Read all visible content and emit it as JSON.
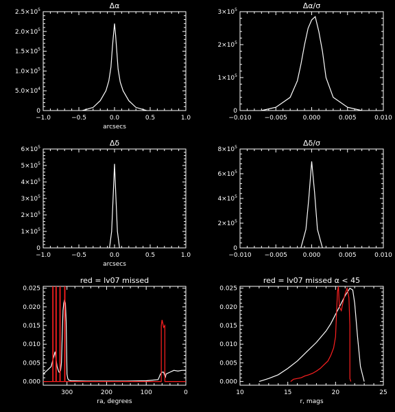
{
  "chart_data": [
    {
      "type": "line",
      "title": "Δα",
      "xlabel": "arcsecs",
      "ylabel": "",
      "xlim": [
        -1.0,
        1.0
      ],
      "ylim": [
        0,
        250000
      ],
      "xticks": [
        -1.0,
        -0.5,
        0.0,
        0.5,
        1.0
      ],
      "xtick_labels": [
        "−1.0",
        "−0.5",
        "0.0",
        "0.5",
        "1.0"
      ],
      "yticks": [
        0,
        50000,
        100000,
        150000,
        200000,
        250000
      ],
      "ytick_labels": [
        {
          "mant": "0",
          "exp": ""
        },
        {
          "mant": "5.0×10",
          "exp": "4"
        },
        {
          "mant": "1.0×10",
          "exp": "5"
        },
        {
          "mant": "1.5×10",
          "exp": "5"
        },
        {
          "mant": "2.0×10",
          "exp": "5"
        },
        {
          "mant": "2.5×10",
          "exp": "5"
        }
      ],
      "series": [
        {
          "color": "#ffffff",
          "x": [
            -0.45,
            -0.3,
            -0.2,
            -0.12,
            -0.08,
            -0.05,
            -0.03,
            -0.015,
            0.0,
            0.015,
            0.03,
            0.05,
            0.08,
            0.12,
            0.2,
            0.3,
            0.45
          ],
          "y": [
            0,
            8000,
            25000,
            50000,
            75000,
            110000,
            160000,
            190000,
            220000,
            190000,
            155000,
            105000,
            72000,
            50000,
            25000,
            8000,
            0
          ]
        }
      ]
    },
    {
      "type": "line",
      "title": "Δα/σ",
      "xlabel": "",
      "ylabel": "",
      "xlim": [
        -0.01,
        0.01
      ],
      "ylim": [
        0,
        300000
      ],
      "xticks": [
        -0.01,
        -0.005,
        0.0,
        0.005,
        0.01
      ],
      "xtick_labels": [
        "−0.010",
        "−0.005",
        "0.000",
        "0.005",
        "0.010"
      ],
      "yticks": [
        0,
        100000,
        200000,
        300000
      ],
      "ytick_labels": [
        {
          "mant": "0",
          "exp": ""
        },
        {
          "mant": "1×10",
          "exp": "5"
        },
        {
          "mant": "2×10",
          "exp": "5"
        },
        {
          "mant": "3×10",
          "exp": "5"
        }
      ],
      "series": [
        {
          "color": "#ffffff",
          "x": [
            -0.007,
            -0.005,
            -0.003,
            -0.002,
            -0.0015,
            -0.001,
            -0.0005,
            0.0,
            0.0005,
            0.001,
            0.0015,
            0.002,
            0.003,
            0.005,
            0.007
          ],
          "y": [
            0,
            10000,
            40000,
            90000,
            140000,
            200000,
            250000,
            275000,
            285000,
            240000,
            180000,
            100000,
            40000,
            10000,
            0
          ]
        }
      ]
    },
    {
      "type": "line",
      "title": "Δδ",
      "xlabel": "arcsecs",
      "ylabel": "",
      "xlim": [
        -1.0,
        1.0
      ],
      "ylim": [
        0,
        600000
      ],
      "xticks": [
        -1.0,
        -0.5,
        0.0,
        0.5,
        1.0
      ],
      "xtick_labels": [
        "−1.0",
        "−0.5",
        "0.0",
        "0.5",
        "1.0"
      ],
      "yticks": [
        0,
        100000,
        200000,
        300000,
        400000,
        500000,
        600000
      ],
      "ytick_labels": [
        {
          "mant": "0",
          "exp": ""
        },
        {
          "mant": "1×10",
          "exp": "5"
        },
        {
          "mant": "2×10",
          "exp": "5"
        },
        {
          "mant": "3×10",
          "exp": "5"
        },
        {
          "mant": "4×10",
          "exp": "5"
        },
        {
          "mant": "5×10",
          "exp": "5"
        },
        {
          "mant": "6×10",
          "exp": "5"
        }
      ],
      "series": [
        {
          "color": "#ffffff",
          "x": [
            -0.07,
            -0.04,
            -0.02,
            0.0,
            0.02,
            0.04,
            0.07
          ],
          "y": [
            0,
            100000,
            300000,
            510000,
            300000,
            100000,
            0
          ]
        }
      ]
    },
    {
      "type": "line",
      "title": "Δδ/σ",
      "xlabel": "",
      "ylabel": "",
      "xlim": [
        -0.01,
        0.01
      ],
      "ylim": [
        0,
        800000
      ],
      "xticks": [
        -0.01,
        -0.005,
        0.0,
        0.005,
        0.01
      ],
      "xtick_labels": [
        "−0.010",
        "−0.005",
        "0.000",
        "0.005",
        "0.010"
      ],
      "yticks": [
        0,
        200000,
        400000,
        600000,
        800000
      ],
      "ytick_labels": [
        {
          "mant": "0",
          "exp": ""
        },
        {
          "mant": "2×10",
          "exp": "5"
        },
        {
          "mant": "4×10",
          "exp": "5"
        },
        {
          "mant": "6×10",
          "exp": "5"
        },
        {
          "mant": "8×10",
          "exp": "5"
        }
      ],
      "series": [
        {
          "color": "#ffffff",
          "x": [
            -0.0015,
            -0.0008,
            -0.0004,
            0.0,
            0.0004,
            0.0008,
            0.0015
          ],
          "y": [
            0,
            150000,
            400000,
            700000,
            450000,
            150000,
            0
          ]
        }
      ]
    },
    {
      "type": "line",
      "title": "red = lv07 missed",
      "xlabel": "ra, degrees",
      "ylabel": "",
      "xlim": [
        360,
        0
      ],
      "ylim": [
        -0.001,
        0.0255
      ],
      "xticks": [
        300,
        200,
        100,
        0
      ],
      "xtick_labels": [
        "300",
        "200",
        "100",
        "0"
      ],
      "yticks": [
        0.0,
        0.005,
        0.01,
        0.015,
        0.02,
        0.025
      ],
      "ytick_labels": [
        {
          "mant": "0.000",
          "exp": ""
        },
        {
          "mant": "0.005",
          "exp": ""
        },
        {
          "mant": "0.010",
          "exp": ""
        },
        {
          "mant": "0.015",
          "exp": ""
        },
        {
          "mant": "0.020",
          "exp": ""
        },
        {
          "mant": "0.025",
          "exp": ""
        }
      ],
      "series": [
        {
          "color": "#ffffff",
          "x": [
            360,
            350,
            340,
            335,
            330,
            325,
            322,
            320,
            318,
            316,
            314,
            312,
            310,
            308,
            306,
            304,
            302,
            300,
            298,
            296,
            290,
            250,
            200,
            150,
            100,
            70,
            64,
            60,
            56,
            52,
            50,
            40,
            30,
            20,
            10,
            0
          ],
          "y": [
            0.002,
            0.003,
            0.004,
            0.006,
            0.008,
            0.004,
            0.003,
            0.0025,
            0.0025,
            0.003,
            0.005,
            0.012,
            0.019,
            0.021,
            0.022,
            0.021,
            0.016,
            0.002,
            0.0008,
            0.0004,
            0.0002,
            0.0001,
            0.0001,
            0.0001,
            0.0002,
            0.0005,
            0.002,
            0.0025,
            0.0025,
            0.001,
            0.002,
            0.0025,
            0.003,
            0.0028,
            0.003,
            0.003
          ]
        },
        {
          "color": "#ff2020",
          "x": [
            360,
            337,
            336,
            336,
            335,
            335,
            330,
            328,
            328,
            327,
            327,
            320,
            318,
            318,
            317,
            317,
            310,
            306,
            306,
            305,
            305,
            300,
            62,
            62,
            60,
            58,
            56,
            53,
            53,
            0
          ],
          "y": [
            0,
            0,
            0,
            0.026,
            0.026,
            0,
            0,
            0,
            0.026,
            0.026,
            0,
            0,
            0,
            0.026,
            0.026,
            0,
            0,
            0,
            0.026,
            0.026,
            0,
            0,
            0,
            0.015,
            0.0165,
            0.0155,
            0.0145,
            0.015,
            0,
            0
          ]
        }
      ]
    },
    {
      "type": "line",
      "title": "red = lv07 missed α < 45",
      "xlabel": "r, mags",
      "ylabel": "",
      "xlim": [
        10,
        25
      ],
      "ylim": [
        -0.001,
        0.0255
      ],
      "xticks": [
        10,
        15,
        20,
        25
      ],
      "xtick_labels": [
        "10",
        "15",
        "20",
        "25"
      ],
      "yticks": [
        0.0,
        0.005,
        0.01,
        0.015,
        0.02,
        0.025
      ],
      "ytick_labels": [
        {
          "mant": "0.000",
          "exp": ""
        },
        {
          "mant": "0.005",
          "exp": ""
        },
        {
          "mant": "0.010",
          "exp": ""
        },
        {
          "mant": "0.015",
          "exp": ""
        },
        {
          "mant": "0.020",
          "exp": ""
        },
        {
          "mant": "0.025",
          "exp": ""
        }
      ],
      "series": [
        {
          "color": "#ffffff",
          "x": [
            12.0,
            13.0,
            14.0,
            15.0,
            16.0,
            17.0,
            18.0,
            19.0,
            19.5,
            20.0,
            20.5,
            21.0,
            21.5,
            21.8,
            22.0,
            22.3,
            22.6,
            23.0
          ],
          "y": [
            0.0,
            0.0008,
            0.0018,
            0.0035,
            0.0055,
            0.008,
            0.0105,
            0.0135,
            0.0155,
            0.018,
            0.0205,
            0.023,
            0.025,
            0.0245,
            0.021,
            0.012,
            0.004,
            0.0
          ]
        },
        {
          "color": "#ff2020",
          "x": [
            15.3,
            15.6,
            16.0,
            16.4,
            16.8,
            17.2,
            17.6,
            18.0,
            18.4,
            18.8,
            19.2,
            19.5,
            19.8,
            20.0,
            20.1,
            20.2,
            20.3,
            20.4,
            20.6,
            20.8,
            21.0,
            21.2,
            21.4,
            21.5,
            21.5,
            21.6
          ],
          "y": [
            0.0,
            0.0006,
            0.0008,
            0.001,
            0.0015,
            0.0018,
            0.0022,
            0.0028,
            0.0035,
            0.0045,
            0.0055,
            0.007,
            0.009,
            0.012,
            0.018,
            0.024,
            0.0255,
            0.02,
            0.019,
            0.0215,
            0.0235,
            0.025,
            0.0225,
            0.015,
            0.0008,
            0.0
          ]
        }
      ]
    }
  ]
}
